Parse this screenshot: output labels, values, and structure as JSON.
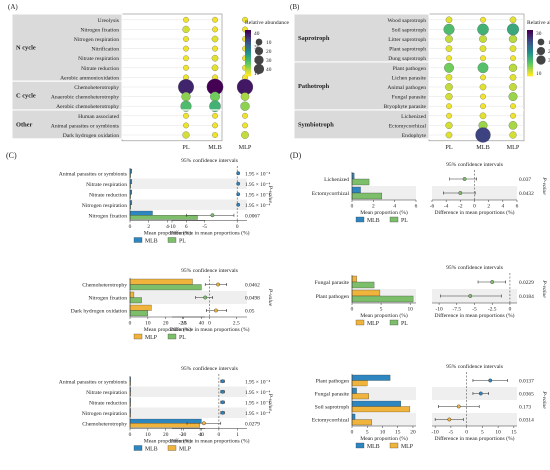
{
  "colors": {
    "MLB": "#2E86C1",
    "PL": "#7DBE6B",
    "MLP": "#F0B43C",
    "panel_bg": "#DADADA",
    "band": "#EFEFEF",
    "marker": "#9E9E9E"
  },
  "panels": [
    {
      "label": "(A)",
      "type": "bubble",
      "columns": [
        "PL",
        "MLB",
        "MLP"
      ],
      "groups": [
        {
          "name": "N cycle",
          "rows": [
            "Ureolysis",
            "Nitrogen fixation",
            "Nitrogen respiration",
            "Nitrification",
            "Nitrate respiration",
            "Nitrate reduction",
            "Aerobic ammonioxidation"
          ]
        },
        {
          "name": "C cycle",
          "rows": [
            "Chemoheterotrophy",
            "Anaerobic chemoheterotrophy",
            "Aerobic chemoheterotrophy"
          ]
        },
        {
          "name": "Other",
          "rows": [
            "Human associated",
            "Animal parasites or symbionts",
            "Dark hydrogen oxidation"
          ]
        }
      ],
      "values": [
        [
          1,
          1,
          1
        ],
        [
          3,
          1,
          1
        ],
        [
          1,
          2,
          1
        ],
        [
          1,
          1,
          1
        ],
        [
          1,
          2,
          1
        ],
        [
          1,
          2,
          1
        ],
        [
          1,
          1,
          1
        ],
        [
          40,
          45,
          42
        ],
        [
          8,
          10,
          6
        ],
        [
          14,
          16,
          8
        ],
        [
          1,
          1,
          1
        ],
        [
          1,
          1,
          1
        ],
        [
          3,
          1,
          4
        ]
      ],
      "legend_title": "Relative abundance",
      "colorbar_ticks": [
        "40",
        "30",
        "20",
        "10"
      ],
      "size_legend": [
        10,
        20,
        30,
        40
      ]
    },
    {
      "label": "(B)",
      "type": "bubble",
      "columns": [
        "PL",
        "MLB",
        "MLP"
      ],
      "groups": [
        {
          "name": "Saprotroph",
          "rows": [
            "Wood saprotroph",
            "Soil saprotroph",
            "Litter saprotroph",
            "Plant saprotroph",
            "Dung saprotroph"
          ]
        },
        {
          "name": "Pathotroph",
          "rows": [
            "Plant pathogen",
            "Lichen parasite",
            "Animal pathogen",
            "Fungal parasite",
            "Bryophyte parasite"
          ]
        },
        {
          "name": "Symbiotroph",
          "rows": [
            "Lichenized",
            "Ectomycorrhizal",
            "Endophyte"
          ]
        }
      ],
      "values": [
        [
          2,
          1,
          2
        ],
        [
          14,
          16,
          18
        ],
        [
          4,
          4,
          5
        ],
        [
          2,
          2,
          2
        ],
        [
          1,
          1,
          1
        ],
        [
          10,
          13,
          5
        ],
        [
          2,
          1,
          2
        ],
        [
          4,
          2,
          4
        ],
        [
          3,
          1,
          7
        ],
        [
          1,
          1,
          1
        ],
        [
          1,
          2,
          1
        ],
        [
          3,
          7,
          6
        ],
        [
          2,
          36,
          3
        ]
      ],
      "legend_title": "Relative abundance",
      "colorbar_ticks": [
        "30",
        "20",
        "10"
      ],
      "size_legend": [
        10,
        20,
        30
      ]
    }
  ],
  "chart_data": [
    {
      "type": "bubble",
      "title": "(A)",
      "columns": [
        "PL",
        "MLB",
        "MLP"
      ],
      "rows": [
        "Ureolysis",
        "Nitrogen fixation",
        "Nitrogen respiration",
        "Nitrification",
        "Nitrate respiration",
        "Nitrate reduction",
        "Aerobic ammonioxidation",
        "Chemoheterotrophy",
        "Anaerobic chemoheterotrophy",
        "Aerobic chemoheterotrophy",
        "Human associated",
        "Animal parasites or symbionts",
        "Dark hydrogen oxidation"
      ],
      "values": [
        [
          1,
          1,
          1
        ],
        [
          3,
          1,
          1
        ],
        [
          1,
          2,
          1
        ],
        [
          1,
          1,
          1
        ],
        [
          1,
          2,
          1
        ],
        [
          1,
          2,
          1
        ],
        [
          1,
          1,
          1
        ],
        [
          40,
          45,
          42
        ],
        [
          8,
          10,
          6
        ],
        [
          14,
          16,
          8
        ],
        [
          1,
          1,
          1
        ],
        [
          1,
          1,
          1
        ],
        [
          3,
          1,
          4
        ]
      ]
    },
    {
      "type": "bubble",
      "title": "(B)",
      "columns": [
        "PL",
        "MLB",
        "MLP"
      ],
      "rows": [
        "Wood saprotroph",
        "Soil saprotroph",
        "Litter saprotroph",
        "Plant saprotroph",
        "Dung saprotroph",
        "Plant pathogen",
        "Lichen parasite",
        "Animal pathogen",
        "Fungal parasite",
        "Bryophyte parasite",
        "Lichenized",
        "Ectomycorrhizal",
        "Endophyte"
      ],
      "values": [
        [
          2,
          1,
          2
        ],
        [
          14,
          16,
          18
        ],
        [
          4,
          4,
          5
        ],
        [
          2,
          2,
          2
        ],
        [
          1,
          1,
          1
        ],
        [
          10,
          13,
          5
        ],
        [
          2,
          1,
          2
        ],
        [
          4,
          2,
          4
        ],
        [
          3,
          1,
          7
        ],
        [
          1,
          1,
          1
        ],
        [
          1,
          2,
          1
        ],
        [
          3,
          7,
          6
        ],
        [
          2,
          36,
          3
        ]
      ]
    },
    {
      "type": "bar",
      "title": "(C) MLB vs PL",
      "categories": [
        "Animal parasites or symbionts",
        "Nitrate respiration",
        "Nitrate reduction",
        "Nitrogen respiration",
        "Nitrogen fixation"
      ],
      "series": [
        {
          "name": "MLB",
          "values": [
            0.2,
            0.2,
            0.2,
            0.2,
            2.4
          ]
        },
        {
          "name": "PL",
          "values": [
            0.05,
            0.05,
            0.05,
            0.05,
            7.2
          ]
        }
      ],
      "xlim": [
        0,
        8
      ],
      "xticks": [
        0,
        2,
        4,
        6
      ],
      "xlabel": "Mean proportion (%)",
      "ci": {
        "estimate": [
          0.15,
          0.15,
          0.15,
          0.15,
          -3.8
        ],
        "lower": [
          0.1,
          0.1,
          0.1,
          0.1,
          -7.8
        ],
        "upper": [
          0.2,
          0.2,
          0.2,
          0.2,
          -0.5
        ],
        "xlim": [
          -10,
          1.5
        ],
        "xticks": [
          -10,
          -5,
          0
        ],
        "title": "95% confidence intervals",
        "xlabel": "Difference in mean proportions (%)"
      },
      "pvalues": [
        "1.95 × 10⁻⁴",
        "1.95 × 10⁻⁴",
        "1.95 × 10⁻⁴",
        "1.95 × 10⁻⁴",
        "0.0067"
      ]
    },
    {
      "type": "bar",
      "title": "(C) MLP vs PL",
      "categories": [
        "Chemoheterotrophy",
        "Nitrogen fixation",
        "Dark hydrogen oxidation"
      ],
      "series": [
        {
          "name": "MLP",
          "values": [
            35,
            2.2,
            12
          ]
        },
        {
          "name": "PL",
          "values": [
            40,
            6.5,
            10
          ]
        }
      ],
      "xlim": [
        0,
        42
      ],
      "xticks": [
        0,
        10,
        20,
        30,
        40
      ],
      "xlabel": "Mean proportion (%)",
      "ci": {
        "estimate": [
          0.8,
          -0.4,
          0.6
        ],
        "lower": [
          -0.4,
          -1.3,
          -0.3
        ],
        "upper": [
          1.6,
          0.3,
          1.6
        ],
        "xlim": [
          -3.5,
          3.5
        ],
        "xticks": [
          -2.5,
          0,
          2.5
        ],
        "title": "95% confidence intervals",
        "xlabel": "Difference in mean proportions (%)"
      },
      "pvalues": [
        "0.0462",
        "0.0498",
        "0.05"
      ]
    },
    {
      "type": "bar",
      "title": "(C) MLB vs MLP",
      "categories": [
        "Animal parasites or symbionts",
        "Nitrate respiration",
        "Nitrate reduction",
        "Nitrogen respiration",
        "Chemoheterotrophy"
      ],
      "series": [
        {
          "name": "MLB",
          "values": [
            0.3,
            0.3,
            0.3,
            0.3,
            40
          ]
        },
        {
          "name": "MLP",
          "values": [
            0.1,
            0.1,
            0.1,
            0.1,
            39
          ]
        }
      ],
      "xlim": [
        0,
        42
      ],
      "xticks": [
        0,
        10,
        20,
        30,
        40
      ],
      "xlabel": "Mean proportion (%)",
      "ci": {
        "estimate": [
          0.2,
          0.2,
          0.2,
          0.2,
          -0.8
        ],
        "lower": [
          0.1,
          0.1,
          0.1,
          0.1,
          -1.7
        ],
        "upper": [
          0.3,
          0.3,
          0.3,
          0.3,
          0.1
        ],
        "xlim": [
          -2.5,
          1.5
        ],
        "xticks": [
          -2,
          -1,
          0,
          1
        ],
        "title": "95% confidence intervals",
        "xlabel": "Difference in mean proportions (%)"
      },
      "pvalues": [
        "1.95 × 10⁻⁴",
        "1.95 × 10⁻⁴",
        "1.95 × 10⁻⁴",
        "1.95 × 10⁻⁴",
        "0.0279"
      ]
    },
    {
      "type": "bar",
      "title": "(D) MLB vs PL",
      "categories": [
        "Lichenized",
        "Ectomycorrhizal"
      ],
      "series": [
        {
          "name": "MLB",
          "values": [
            0.2,
            0.8
          ]
        },
        {
          "name": "PL",
          "values": [
            1.6,
            2.8
          ]
        }
      ],
      "xlim": [
        0,
        6
      ],
      "xticks": [
        0,
        2,
        4,
        6
      ],
      "xlabel": "Mean proportion (%)",
      "ci": {
        "estimate": [
          -1.4,
          -2.0
        ],
        "lower": [
          -3.5,
          -4.4
        ],
        "upper": [
          0.3,
          0.1
        ],
        "xlim": [
          -6,
          6
        ],
        "xticks": [
          -6,
          -4,
          -2,
          0,
          2,
          4,
          6
        ],
        "title": "95% confidence intervals",
        "xlabel": "Difference in mean proportions (%)"
      },
      "pvalues": [
        "0.037",
        "0.0432"
      ]
    },
    {
      "type": "bar",
      "title": "(D) MLP vs PL",
      "categories": [
        "Fungal parasite",
        "Plant pathogen"
      ],
      "series": [
        {
          "name": "MLP",
          "values": [
            0.8,
            4.8
          ]
        },
        {
          "name": "PL",
          "values": [
            3.8,
            10.5
          ]
        }
      ],
      "xlim": [
        0,
        11
      ],
      "xticks": [
        0,
        5,
        10
      ],
      "xlabel": "Mean proportion (%)",
      "ci": {
        "estimate": [
          -2.5,
          -5.6
        ],
        "lower": [
          -4.5,
          -9.8
        ],
        "upper": [
          -0.6,
          -1.2
        ],
        "xlim": [
          -11,
          1
        ],
        "xticks": [
          -10,
          -7.5,
          -5,
          -2.5,
          0
        ],
        "title": "95% confidence intervals",
        "xlabel": "Difference in mean proportions (%)"
      },
      "pvalues": [
        "0.0229",
        "0.0184"
      ]
    },
    {
      "type": "bar",
      "title": "(D) MLB vs MLP",
      "categories": [
        "Plant pathogen",
        "Fungal parasite",
        "Soil saprotroph",
        "Ectomycorrhizal"
      ],
      "series": [
        {
          "name": "MLB",
          "values": [
            12.5,
            1.5,
            16,
            1.0
          ]
        },
        {
          "name": "MLP",
          "values": [
            5,
            5.5,
            19,
            6.5
          ]
        }
      ],
      "xlim": [
        0,
        21
      ],
      "xticks": [
        0,
        5,
        10,
        15,
        20
      ],
      "xlabel": "Mean proportion (%)",
      "ci": {
        "estimate": [
          7.5,
          4.5,
          -2.5,
          -5.5
        ],
        "lower": [
          2,
          2,
          -9,
          -10
        ],
        "upper": [
          13,
          7,
          4,
          -1
        ],
        "xlim": [
          -11,
          16
        ],
        "xticks": [
          -10,
          -5,
          0,
          5,
          10,
          15
        ],
        "title": "95% confidence intervals",
        "xlabel": "Difference in mean proportions (%)"
      },
      "pvalues": [
        "0.0137",
        "0.0365",
        "0.173",
        "0.0314"
      ]
    }
  ],
  "labels": {
    "panel_c": "(C)",
    "panel_d": "(D)",
    "pvalue_axis": "P-value"
  }
}
